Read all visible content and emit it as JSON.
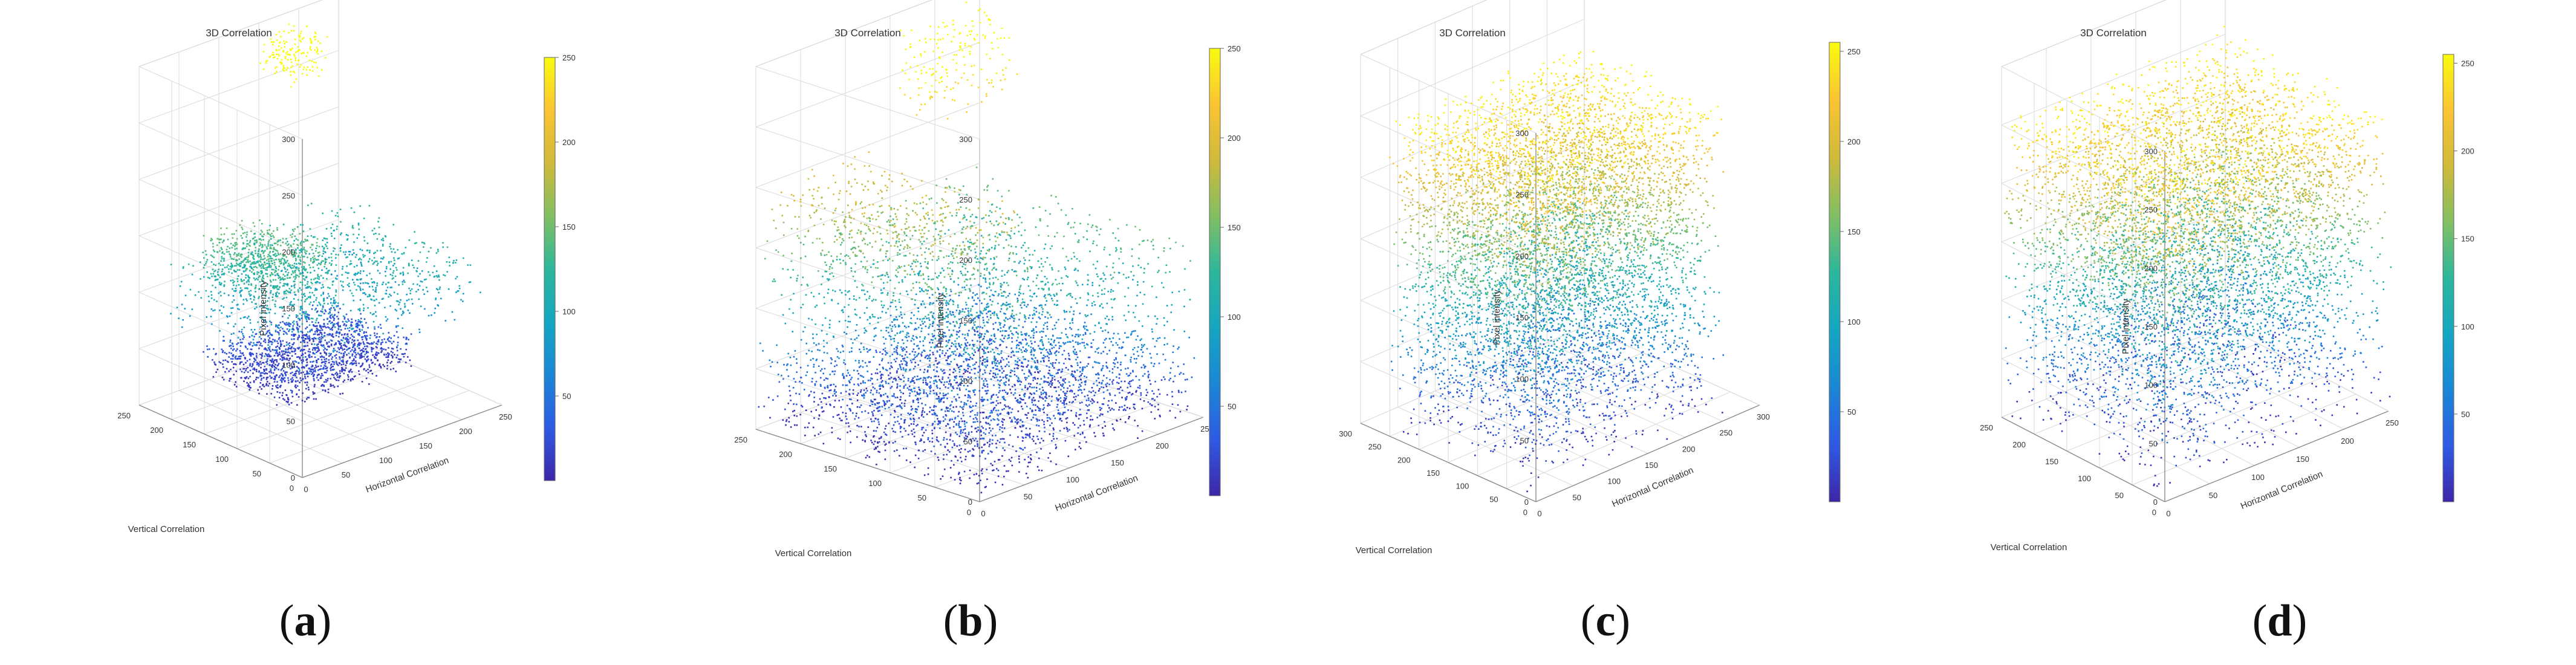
{
  "figure": {
    "colormap": [
      "#3e26a8",
      "#2e5ae4",
      "#1a87d6",
      "#14a6c2",
      "#2cb79c",
      "#82bf62",
      "#d0ba3a",
      "#fbc432",
      "#f9fb0e"
    ],
    "grid_color": "#d9d9d9",
    "box_color": "#8a8a8a"
  },
  "chart_data": [
    {
      "id": "a",
      "type": "scatter3d",
      "caption_open": "(",
      "caption_letter": "a",
      "caption_close": ")",
      "title": "3D Correlation",
      "xlabel": "Horizontal Correlation",
      "ylabel": "Vertical Correlation",
      "zlabel": "Pixel intensity",
      "xlim": [
        0,
        250
      ],
      "ylim": [
        0,
        250
      ],
      "zlim": [
        0,
        300
      ],
      "xticks": [
        "0",
        "50",
        "100",
        "150",
        "200",
        "250"
      ],
      "yticks": [
        "0",
        "50",
        "100",
        "150",
        "200",
        "250"
      ],
      "zticks": [
        "0",
        "50",
        "100",
        "150",
        "200",
        "250",
        "300"
      ],
      "colorbar_ticks": [
        "50",
        "100",
        "150",
        "200",
        "250"
      ],
      "clim": [
        0,
        250
      ],
      "distribution": "clustered",
      "clusters": [
        {
          "x": [
            40,
            120
          ],
          "y": [
            90,
            210
          ],
          "z": [
            115,
            150
          ],
          "n": 650
        },
        {
          "x": [
            20,
            250
          ],
          "y": [
            30,
            240
          ],
          "z": [
            70,
            130
          ],
          "n": 1100
        },
        {
          "x": [
            80,
            240
          ],
          "y": [
            120,
            250
          ],
          "z": [
            5,
            35
          ],
          "n": 1400
        },
        {
          "x": [
            150,
            200
          ],
          "y": [
            200,
            250
          ],
          "z": [
            255,
            290
          ],
          "n": 160
        }
      ]
    },
    {
      "id": "b",
      "type": "scatter3d",
      "caption_open": "(",
      "caption_letter": "b",
      "caption_close": ")",
      "title": "3D Correlation",
      "xlabel": "Horizontal Correlation",
      "ylabel": "Vertical Correlation",
      "zlabel": "Pixel intensity",
      "xlim": [
        0,
        250
      ],
      "ylim": [
        0,
        250
      ],
      "zlim": [
        0,
        300
      ],
      "xticks": [
        "0",
        "50",
        "100",
        "150",
        "200",
        "250"
      ],
      "yticks": [
        "0",
        "50",
        "100",
        "150",
        "200",
        "250"
      ],
      "zticks": [
        "0",
        "50",
        "100",
        "150",
        "200",
        "250",
        "300"
      ],
      "colorbar_ticks": [
        "50",
        "100",
        "150",
        "200",
        "250"
      ],
      "clim": [
        0,
        250
      ],
      "distribution": "clustered",
      "clusters": [
        {
          "x": [
            0,
            250
          ],
          "y": [
            0,
            250
          ],
          "z": [
            0,
            60
          ],
          "n": 2600
        },
        {
          "x": [
            0,
            250
          ],
          "y": [
            0,
            250
          ],
          "z": [
            60,
            150
          ],
          "n": 1500
        },
        {
          "x": [
            0,
            120
          ],
          "y": [
            60,
            250
          ],
          "z": [
            140,
            200
          ],
          "n": 500
        },
        {
          "x": [
            150,
            250
          ],
          "y": [
            200,
            250
          ],
          "z": [
            220,
            290
          ],
          "n": 180
        }
      ]
    },
    {
      "id": "c",
      "type": "scatter3d",
      "caption_open": "(",
      "caption_letter": "c",
      "caption_close": ")",
      "title": "3D Correlation",
      "xlabel": "Horizontal Correlation",
      "ylabel": "Vertical Correlation",
      "zlabel": "Pixel intensity",
      "xlim": [
        0,
        300
      ],
      "ylim": [
        0,
        300
      ],
      "zlim": [
        0,
        300
      ],
      "xticks": [
        "0",
        "50",
        "100",
        "150",
        "200",
        "250",
        "300"
      ],
      "yticks": [
        "0",
        "50",
        "100",
        "150",
        "200",
        "250",
        "300"
      ],
      "zticks": [
        "0",
        "50",
        "100",
        "150",
        "200",
        "250",
        "300"
      ],
      "colorbar_ticks": [
        "50",
        "100",
        "150",
        "200",
        "250"
      ],
      "clim": [
        0,
        255
      ],
      "distribution": "uniform",
      "clusters": [
        {
          "x": [
            0,
            255
          ],
          "y": [
            0,
            255
          ],
          "z": [
            0,
            255
          ],
          "n": 7000
        }
      ]
    },
    {
      "id": "d",
      "type": "scatter3d",
      "caption_open": "(",
      "caption_letter": "d",
      "caption_close": ")",
      "title": "3D Correlation",
      "xlabel": "Horizontal Correlation",
      "ylabel": "Vertical Correlation",
      "zlabel": "Pixel intensity",
      "xlim": [
        0,
        250
      ],
      "ylim": [
        0,
        250
      ],
      "zlim": [
        0,
        300
      ],
      "xticks": [
        "0",
        "50",
        "100",
        "150",
        "200",
        "250"
      ],
      "yticks": [
        "0",
        "50",
        "100",
        "150",
        "200",
        "250"
      ],
      "zticks": [
        "0",
        "50",
        "100",
        "150",
        "200",
        "250",
        "300"
      ],
      "colorbar_ticks": [
        "50",
        "100",
        "150",
        "200",
        "250"
      ],
      "clim": [
        0,
        255
      ],
      "distribution": "uniform",
      "clusters": [
        {
          "x": [
            0,
            255
          ],
          "y": [
            0,
            255
          ],
          "z": [
            0,
            255
          ],
          "n": 7000
        }
      ]
    }
  ]
}
